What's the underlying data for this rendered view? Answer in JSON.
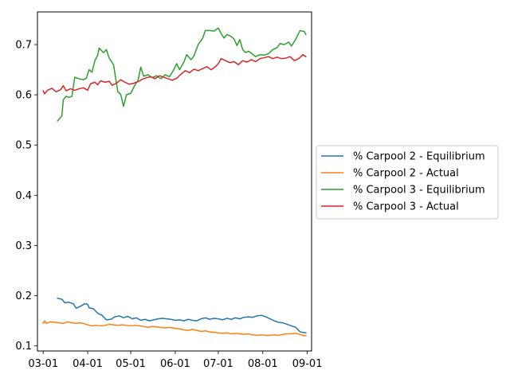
{
  "chart_data": {
    "type": "line",
    "title": "",
    "xlabel": "",
    "ylabel": "",
    "xlim": [
      "2020-02-26",
      "2020-09-04"
    ],
    "ylim": [
      0.09,
      0.765
    ],
    "x_ticks": [
      {
        "date": "2020-03-01",
        "label": "03-01"
      },
      {
        "date": "2020-04-01",
        "label": "04-01"
      },
      {
        "date": "2020-05-01",
        "label": "05-01"
      },
      {
        "date": "2020-06-01",
        "label": "06-01"
      },
      {
        "date": "2020-07-01",
        "label": "07-01"
      },
      {
        "date": "2020-08-01",
        "label": "08-01"
      },
      {
        "date": "2020-09-01",
        "label": "09-01"
      }
    ],
    "y_ticks": [
      0.1,
      0.2,
      0.3,
      0.4,
      0.5,
      0.6,
      0.7
    ],
    "y_tick_labels": [
      "0.1",
      "0.2",
      "0.3",
      "0.4",
      "0.5",
      "0.6",
      "0.7"
    ],
    "grid": false,
    "legend_position": "center-right outside",
    "series": [
      {
        "name": "% Carpool 2 - Equilibrium",
        "color": "#1f77b4",
        "points": [
          [
            "2020-03-11",
            0.195
          ],
          [
            "2020-03-14",
            0.193
          ],
          [
            "2020-03-16",
            0.186
          ],
          [
            "2020-03-19",
            0.187
          ],
          [
            "2020-03-22",
            0.184
          ],
          [
            "2020-03-24",
            0.175
          ],
          [
            "2020-03-27",
            0.179
          ],
          [
            "2020-03-30",
            0.184
          ],
          [
            "2020-04-01",
            0.183
          ],
          [
            "2020-04-02",
            0.176
          ],
          [
            "2020-04-05",
            0.174
          ],
          [
            "2020-04-08",
            0.165
          ],
          [
            "2020-04-11",
            0.161
          ],
          [
            "2020-04-14",
            0.152
          ],
          [
            "2020-04-17",
            0.153
          ],
          [
            "2020-04-20",
            0.158
          ],
          [
            "2020-04-23",
            0.16
          ],
          [
            "2020-04-26",
            0.156
          ],
          [
            "2020-04-29",
            0.159
          ],
          [
            "2020-05-02",
            0.154
          ],
          [
            "2020-05-05",
            0.156
          ],
          [
            "2020-05-08",
            0.151
          ],
          [
            "2020-05-11",
            0.153
          ],
          [
            "2020-05-14",
            0.15
          ],
          [
            "2020-05-17",
            0.152
          ],
          [
            "2020-05-20",
            0.154
          ],
          [
            "2020-05-23",
            0.155
          ],
          [
            "2020-05-26",
            0.154
          ],
          [
            "2020-05-29",
            0.153
          ],
          [
            "2020-06-01",
            0.151
          ],
          [
            "2020-06-04",
            0.152
          ],
          [
            "2020-06-07",
            0.15
          ],
          [
            "2020-06-10",
            0.153
          ],
          [
            "2020-06-13",
            0.151
          ],
          [
            "2020-06-16",
            0.15
          ],
          [
            "2020-06-19",
            0.154
          ],
          [
            "2020-06-22",
            0.156
          ],
          [
            "2020-06-25",
            0.153
          ],
          [
            "2020-06-28",
            0.155
          ],
          [
            "2020-07-01",
            0.154
          ],
          [
            "2020-07-04",
            0.152
          ],
          [
            "2020-07-07",
            0.155
          ],
          [
            "2020-07-10",
            0.153
          ],
          [
            "2020-07-13",
            0.156
          ],
          [
            "2020-07-16",
            0.154
          ],
          [
            "2020-07-19",
            0.157
          ],
          [
            "2020-07-22",
            0.158
          ],
          [
            "2020-07-25",
            0.157
          ],
          [
            "2020-07-28",
            0.16
          ],
          [
            "2020-07-31",
            0.161
          ],
          [
            "2020-08-03",
            0.158
          ],
          [
            "2020-08-06",
            0.154
          ],
          [
            "2020-08-09",
            0.15
          ],
          [
            "2020-08-12",
            0.147
          ],
          [
            "2020-08-15",
            0.146
          ],
          [
            "2020-08-18",
            0.143
          ],
          [
            "2020-08-21",
            0.14
          ],
          [
            "2020-08-24",
            0.137
          ],
          [
            "2020-08-27",
            0.128
          ],
          [
            "2020-08-31",
            0.126
          ]
        ]
      },
      {
        "name": "% Carpool 2 - Actual",
        "color": "#ff7f0e",
        "points": [
          [
            "2020-03-01",
            0.145
          ],
          [
            "2020-03-02",
            0.15
          ],
          [
            "2020-03-03",
            0.145
          ],
          [
            "2020-03-06",
            0.148
          ],
          [
            "2020-03-09",
            0.147
          ],
          [
            "2020-03-12",
            0.146
          ],
          [
            "2020-03-15",
            0.145
          ],
          [
            "2020-03-18",
            0.148
          ],
          [
            "2020-03-21",
            0.146
          ],
          [
            "2020-03-24",
            0.145
          ],
          [
            "2020-03-27",
            0.146
          ],
          [
            "2020-03-30",
            0.144
          ],
          [
            "2020-04-01",
            0.142
          ],
          [
            "2020-04-04",
            0.14
          ],
          [
            "2020-04-07",
            0.141
          ],
          [
            "2020-04-10",
            0.14
          ],
          [
            "2020-04-13",
            0.141
          ],
          [
            "2020-04-16",
            0.143
          ],
          [
            "2020-04-19",
            0.142
          ],
          [
            "2020-04-22",
            0.141
          ],
          [
            "2020-04-25",
            0.142
          ],
          [
            "2020-04-28",
            0.141
          ],
          [
            "2020-05-01",
            0.14
          ],
          [
            "2020-05-04",
            0.141
          ],
          [
            "2020-05-07",
            0.14
          ],
          [
            "2020-05-10",
            0.139
          ],
          [
            "2020-05-13",
            0.137
          ],
          [
            "2020-05-16",
            0.139
          ],
          [
            "2020-05-19",
            0.138
          ],
          [
            "2020-05-22",
            0.137
          ],
          [
            "2020-05-25",
            0.136
          ],
          [
            "2020-05-28",
            0.137
          ],
          [
            "2020-06-01",
            0.135
          ],
          [
            "2020-06-04",
            0.134
          ],
          [
            "2020-06-07",
            0.132
          ],
          [
            "2020-06-10",
            0.131
          ],
          [
            "2020-06-13",
            0.133
          ],
          [
            "2020-06-16",
            0.131
          ],
          [
            "2020-06-19",
            0.129
          ],
          [
            "2020-06-22",
            0.13
          ],
          [
            "2020-06-25",
            0.128
          ],
          [
            "2020-06-28",
            0.127
          ],
          [
            "2020-07-01",
            0.126
          ],
          [
            "2020-07-04",
            0.125
          ],
          [
            "2020-07-07",
            0.126
          ],
          [
            "2020-07-10",
            0.124
          ],
          [
            "2020-07-13",
            0.125
          ],
          [
            "2020-07-16",
            0.124
          ],
          [
            "2020-07-19",
            0.123
          ],
          [
            "2020-07-22",
            0.124
          ],
          [
            "2020-07-25",
            0.122
          ],
          [
            "2020-07-28",
            0.121
          ],
          [
            "2020-07-31",
            0.122
          ],
          [
            "2020-08-03",
            0.121
          ],
          [
            "2020-08-06",
            0.121
          ],
          [
            "2020-08-09",
            0.122
          ],
          [
            "2020-08-12",
            0.121
          ],
          [
            "2020-08-15",
            0.123
          ],
          [
            "2020-08-18",
            0.124
          ],
          [
            "2020-08-21",
            0.124
          ],
          [
            "2020-08-24",
            0.125
          ],
          [
            "2020-08-27",
            0.123
          ],
          [
            "2020-08-30",
            0.12
          ],
          [
            "2020-08-31",
            0.121
          ]
        ]
      },
      {
        "name": "% Carpool 3 - Equilibrium",
        "color": "#2ca02c",
        "points": [
          [
            "2020-03-11",
            0.548
          ],
          [
            "2020-03-14",
            0.558
          ],
          [
            "2020-03-15",
            0.59
          ],
          [
            "2020-03-17",
            0.597
          ],
          [
            "2020-03-19",
            0.595
          ],
          [
            "2020-03-21",
            0.597
          ],
          [
            "2020-03-23",
            0.635
          ],
          [
            "2020-03-26",
            0.632
          ],
          [
            "2020-03-29",
            0.63
          ],
          [
            "2020-03-31",
            0.633
          ],
          [
            "2020-04-02",
            0.65
          ],
          [
            "2020-04-04",
            0.645
          ],
          [
            "2020-04-06",
            0.668
          ],
          [
            "2020-04-08",
            0.679
          ],
          [
            "2020-04-09",
            0.693
          ],
          [
            "2020-04-12",
            0.684
          ],
          [
            "2020-04-14",
            0.69
          ],
          [
            "2020-04-16",
            0.673
          ],
          [
            "2020-04-19",
            0.66
          ],
          [
            "2020-04-22",
            0.606
          ],
          [
            "2020-04-24",
            0.601
          ],
          [
            "2020-04-26",
            0.577
          ],
          [
            "2020-04-28",
            0.6
          ],
          [
            "2020-05-01",
            0.603
          ],
          [
            "2020-05-04",
            0.62
          ],
          [
            "2020-05-06",
            0.628
          ],
          [
            "2020-05-08",
            0.655
          ],
          [
            "2020-05-10",
            0.637
          ],
          [
            "2020-05-13",
            0.64
          ],
          [
            "2020-05-16",
            0.634
          ],
          [
            "2020-05-19",
            0.638
          ],
          [
            "2020-05-22",
            0.632
          ],
          [
            "2020-05-25",
            0.64
          ],
          [
            "2020-05-28",
            0.636
          ],
          [
            "2020-05-31",
            0.65
          ],
          [
            "2020-06-02",
            0.662
          ],
          [
            "2020-06-04",
            0.65
          ],
          [
            "2020-06-07",
            0.665
          ],
          [
            "2020-06-09",
            0.68
          ],
          [
            "2020-06-12",
            0.67
          ],
          [
            "2020-06-14",
            0.677
          ],
          [
            "2020-06-17",
            0.7
          ],
          [
            "2020-06-20",
            0.712
          ],
          [
            "2020-06-22",
            0.728
          ],
          [
            "2020-06-25",
            0.728
          ],
          [
            "2020-06-28",
            0.727
          ],
          [
            "2020-07-01",
            0.733
          ],
          [
            "2020-07-03",
            0.722
          ],
          [
            "2020-07-05",
            0.713
          ],
          [
            "2020-07-07",
            0.72
          ],
          [
            "2020-07-10",
            0.716
          ],
          [
            "2020-07-12",
            0.711
          ],
          [
            "2020-07-14",
            0.698
          ],
          [
            "2020-07-16",
            0.71
          ],
          [
            "2020-07-18",
            0.69
          ],
          [
            "2020-07-20",
            0.684
          ],
          [
            "2020-07-22",
            0.687
          ],
          [
            "2020-07-24",
            0.683
          ],
          [
            "2020-07-27",
            0.676
          ],
          [
            "2020-07-30",
            0.68
          ],
          [
            "2020-08-02",
            0.679
          ],
          [
            "2020-08-05",
            0.682
          ],
          [
            "2020-08-08",
            0.69
          ],
          [
            "2020-08-11",
            0.694
          ],
          [
            "2020-08-13",
            0.702
          ],
          [
            "2020-08-16",
            0.7
          ],
          [
            "2020-08-19",
            0.705
          ],
          [
            "2020-08-21",
            0.697
          ],
          [
            "2020-08-24",
            0.711
          ],
          [
            "2020-08-27",
            0.728
          ],
          [
            "2020-08-30",
            0.726
          ],
          [
            "2020-08-31",
            0.72
          ]
        ]
      },
      {
        "name": "% Carpool 3 - Actual",
        "color": "#d62728",
        "points": [
          [
            "2020-03-01",
            0.608
          ],
          [
            "2020-03-02",
            0.602
          ],
          [
            "2020-03-04",
            0.609
          ],
          [
            "2020-03-07",
            0.613
          ],
          [
            "2020-03-10",
            0.606
          ],
          [
            "2020-03-13",
            0.61
          ],
          [
            "2020-03-15",
            0.618
          ],
          [
            "2020-03-17",
            0.608
          ],
          [
            "2020-03-20",
            0.612
          ],
          [
            "2020-03-23",
            0.609
          ],
          [
            "2020-03-26",
            0.612
          ],
          [
            "2020-03-29",
            0.614
          ],
          [
            "2020-04-01",
            0.609
          ],
          [
            "2020-04-03",
            0.622
          ],
          [
            "2020-04-06",
            0.625
          ],
          [
            "2020-04-08",
            0.62
          ],
          [
            "2020-04-10",
            0.628
          ],
          [
            "2020-04-13",
            0.625
          ],
          [
            "2020-04-16",
            0.627
          ],
          [
            "2020-04-18",
            0.619
          ],
          [
            "2020-04-21",
            0.623
          ],
          [
            "2020-04-24",
            0.63
          ],
          [
            "2020-04-27",
            0.625
          ],
          [
            "2020-04-30",
            0.621
          ],
          [
            "2020-05-03",
            0.623
          ],
          [
            "2020-05-06",
            0.626
          ],
          [
            "2020-05-09",
            0.631
          ],
          [
            "2020-05-12",
            0.634
          ],
          [
            "2020-05-15",
            0.636
          ],
          [
            "2020-05-18",
            0.632
          ],
          [
            "2020-05-21",
            0.638
          ],
          [
            "2020-05-24",
            0.635
          ],
          [
            "2020-05-27",
            0.632
          ],
          [
            "2020-05-30",
            0.629
          ],
          [
            "2020-06-02",
            0.633
          ],
          [
            "2020-06-05",
            0.641
          ],
          [
            "2020-06-08",
            0.648
          ],
          [
            "2020-06-11",
            0.644
          ],
          [
            "2020-06-14",
            0.651
          ],
          [
            "2020-06-17",
            0.648
          ],
          [
            "2020-06-20",
            0.652
          ],
          [
            "2020-06-23",
            0.656
          ],
          [
            "2020-06-26",
            0.65
          ],
          [
            "2020-06-29",
            0.656
          ],
          [
            "2020-07-01",
            0.662
          ],
          [
            "2020-07-03",
            0.672
          ],
          [
            "2020-07-06",
            0.668
          ],
          [
            "2020-07-09",
            0.664
          ],
          [
            "2020-07-12",
            0.666
          ],
          [
            "2020-07-15",
            0.66
          ],
          [
            "2020-07-18",
            0.668
          ],
          [
            "2020-07-21",
            0.665
          ],
          [
            "2020-07-24",
            0.67
          ],
          [
            "2020-07-27",
            0.666
          ],
          [
            "2020-07-30",
            0.672
          ],
          [
            "2020-08-02",
            0.674
          ],
          [
            "2020-08-05",
            0.676
          ],
          [
            "2020-08-08",
            0.672
          ],
          [
            "2020-08-11",
            0.675
          ],
          [
            "2020-08-14",
            0.672
          ],
          [
            "2020-08-17",
            0.673
          ],
          [
            "2020-08-20",
            0.676
          ],
          [
            "2020-08-23",
            0.668
          ],
          [
            "2020-08-26",
            0.672
          ],
          [
            "2020-08-29",
            0.68
          ],
          [
            "2020-08-31",
            0.676
          ]
        ]
      }
    ]
  }
}
